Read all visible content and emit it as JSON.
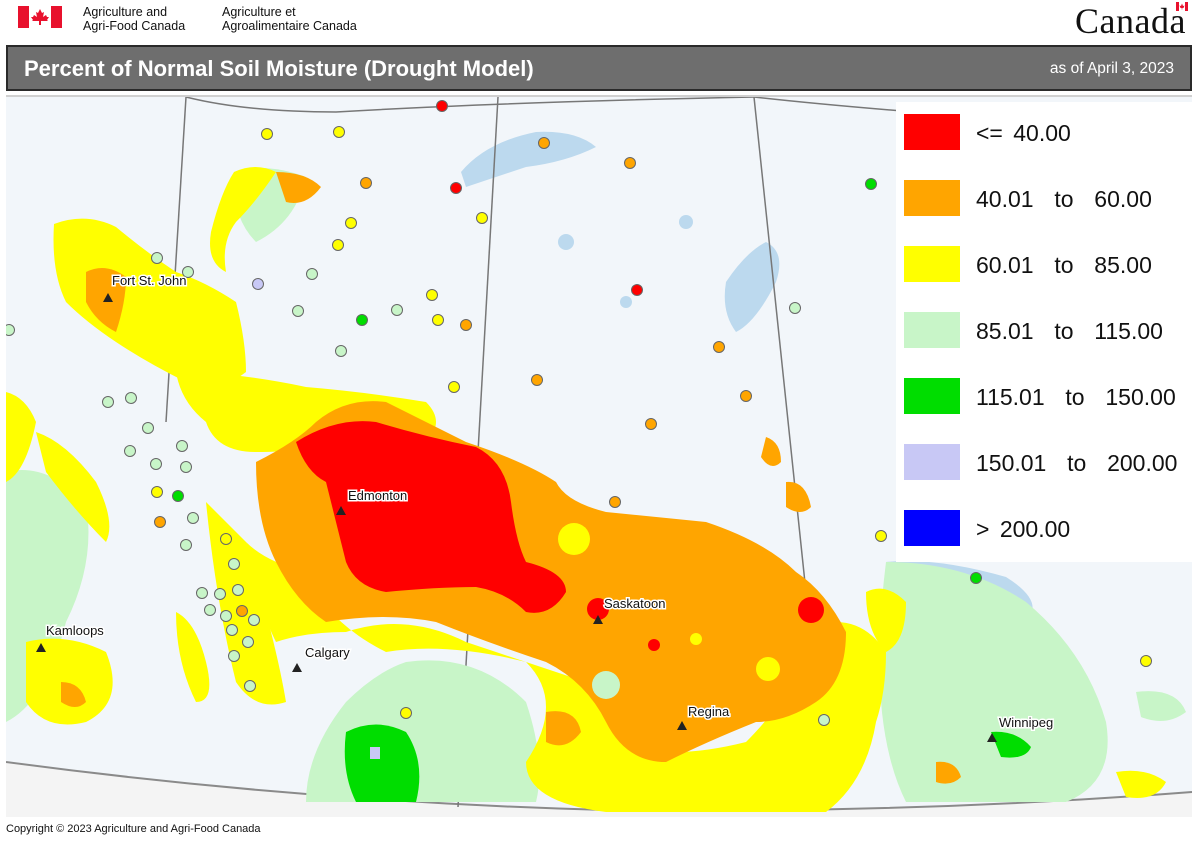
{
  "header": {
    "dept_en_1": "Agriculture and",
    "dept_en_2": "Agri-Food Canada",
    "dept_fr_1": "Agriculture et",
    "dept_fr_2": "Agroalimentaire Canada",
    "wordmark": "Canada"
  },
  "title": "Percent of Normal Soil Moisture (Drought Model)",
  "as_of": "as of April 3, 2023",
  "legend": [
    {
      "label": "<= 40.00",
      "color": "#ff0000"
    },
    {
      "label": "40.01  to  60.00",
      "color": "#ffa500"
    },
    {
      "label": "60.01  to  85.00",
      "color": "#ffff00"
    },
    {
      "label": "85.01  to  115.00",
      "color": "#c8f5c8"
    },
    {
      "label": "115.01  to  150.00",
      "color": "#00dd00"
    },
    {
      "label": "150.01  to  200.00",
      "color": "#c8c8f5"
    },
    {
      "label": "> 200.00",
      "color": "#0000ff"
    }
  ],
  "cities": [
    {
      "name": "Fort St. John"
    },
    {
      "name": "Edmonton"
    },
    {
      "name": "Kamloops"
    },
    {
      "name": "Calgary"
    },
    {
      "name": "Saskatoon"
    },
    {
      "name": "Regina"
    },
    {
      "name": "Winnipeg"
    }
  ],
  "copyright": "Copyright © 2023 Agriculture and Agri-Food Canada"
}
